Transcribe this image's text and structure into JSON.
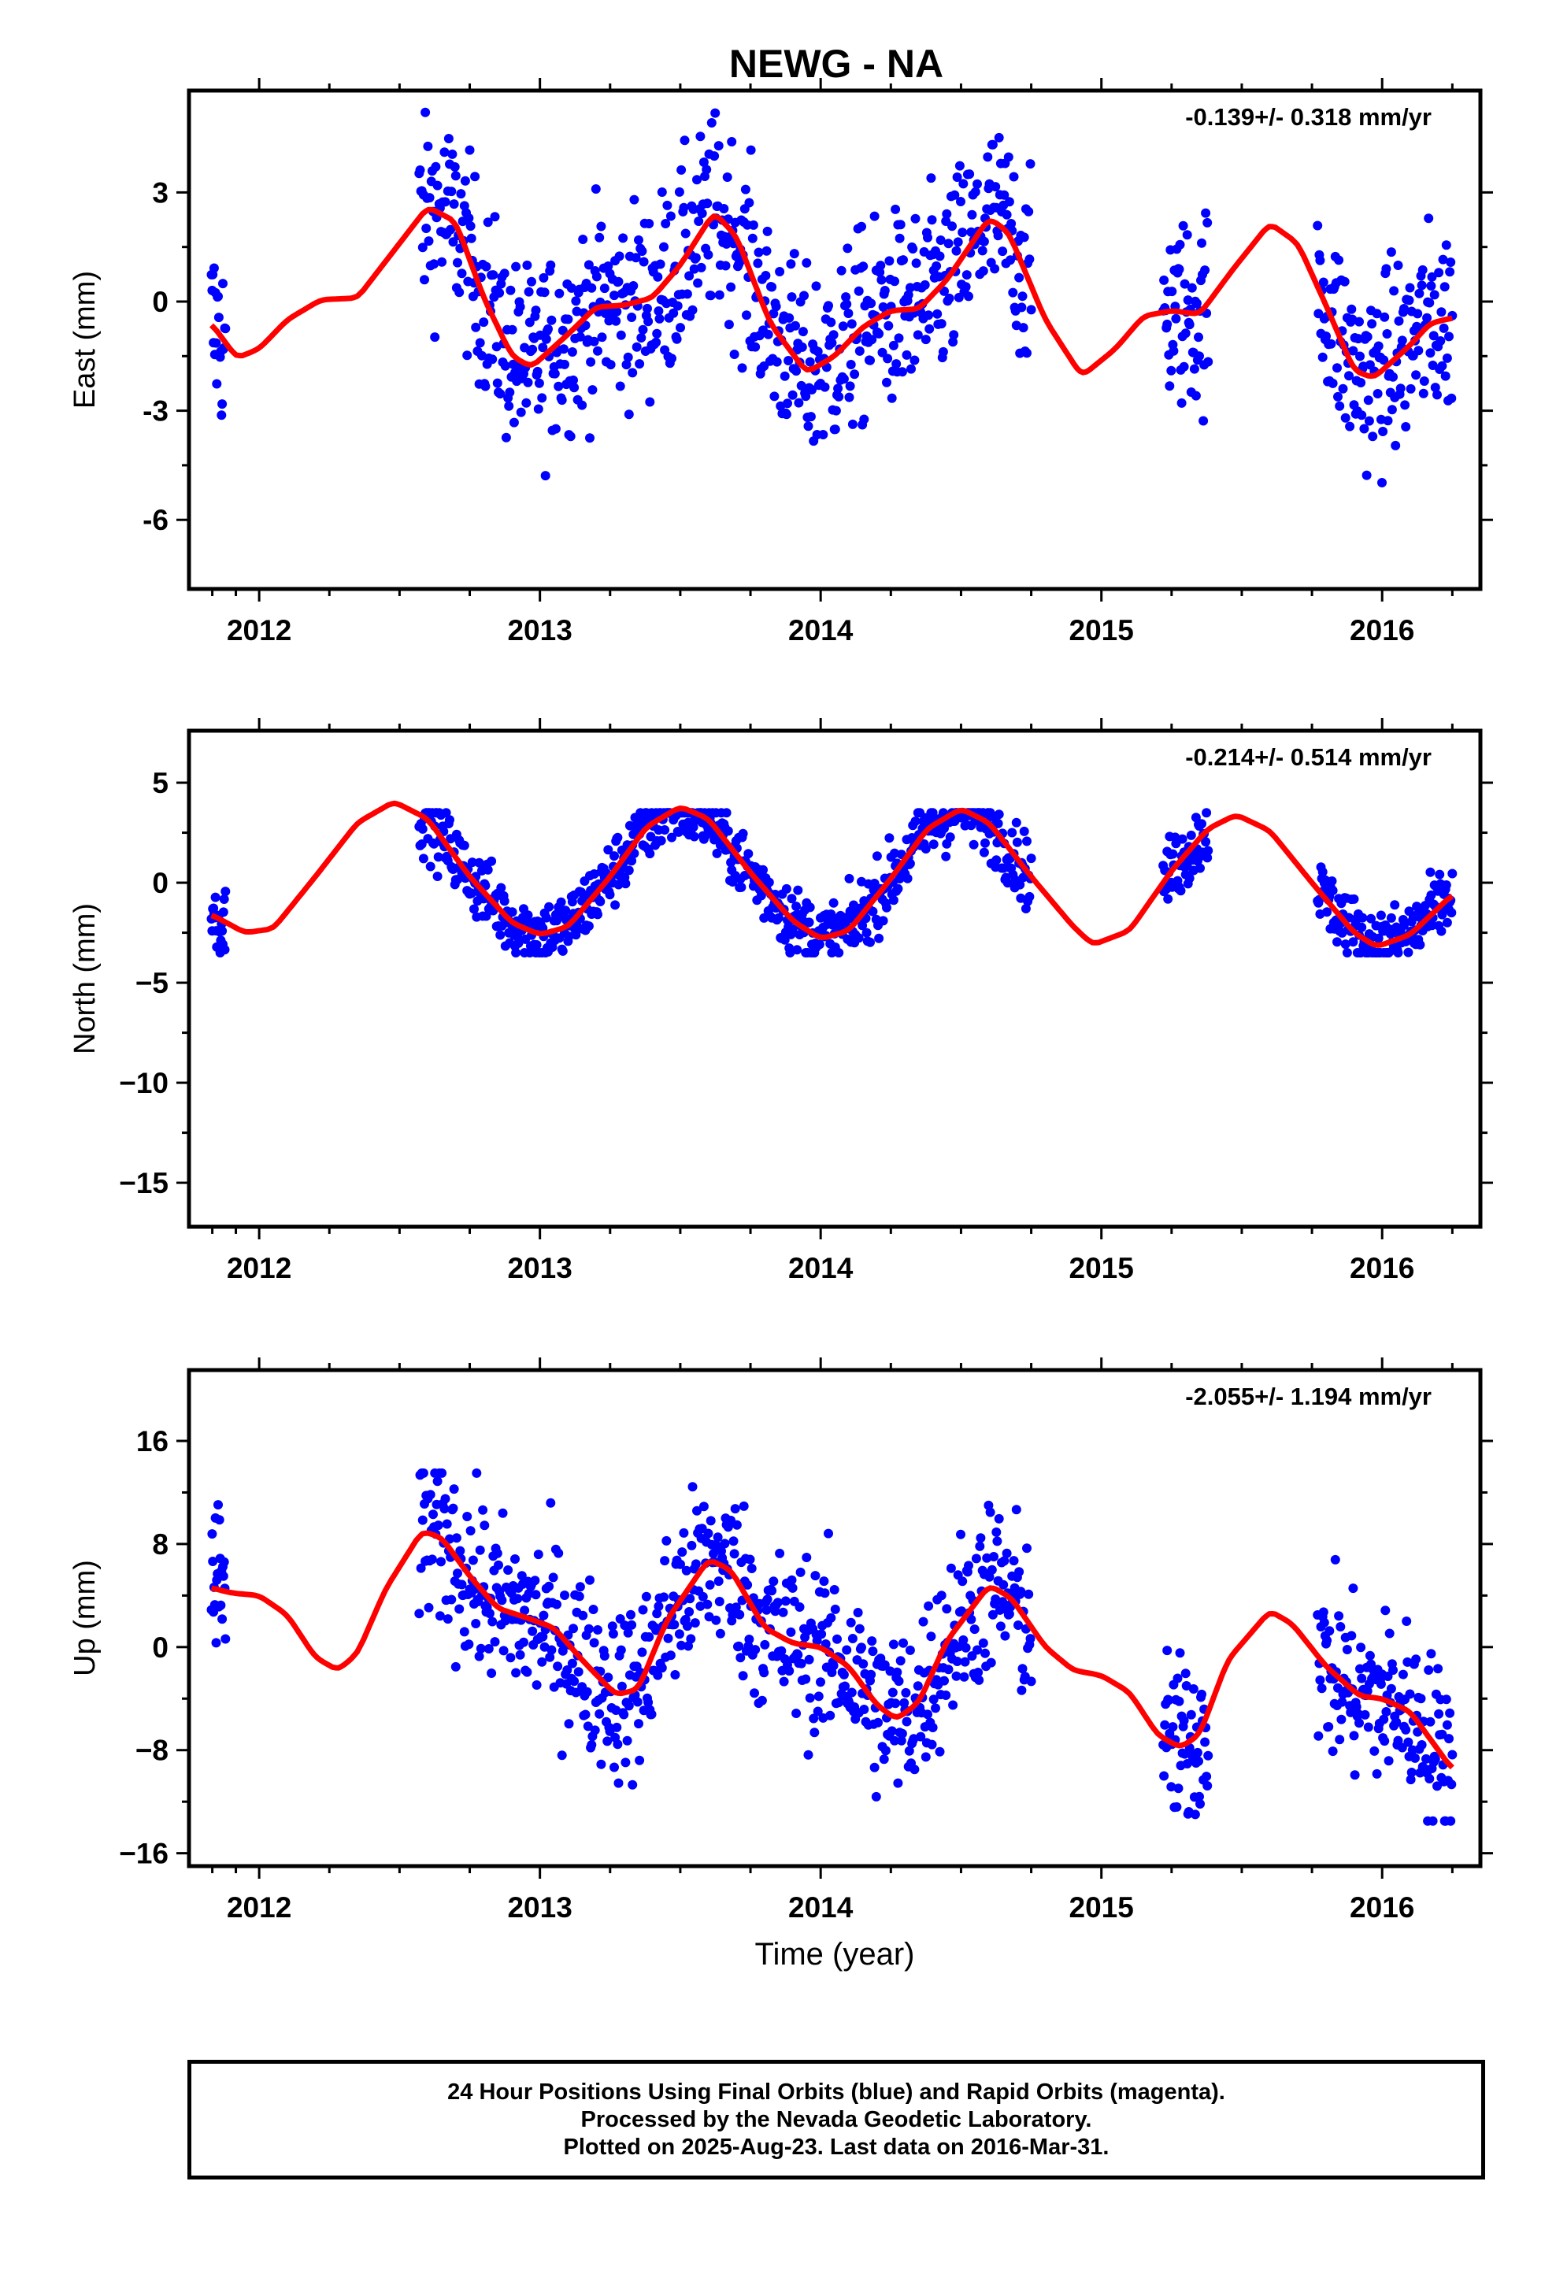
{
  "title": "NEWG - NA",
  "colors": {
    "final_orbits": "#0000ff",
    "model_fit": "#ff0000"
  },
  "footer": {
    "line1": "24 Hour Positions Using Final Orbits (blue) and Rapid Orbits (magenta).",
    "line2": "Processed by the Nevada Geodetic Laboratory.",
    "line3": "Plotted on 2025-Aug-23. Last data on 2016-Mar-31."
  },
  "chart_data": [
    {
      "type": "scatter",
      "component": "east",
      "ylabel": "East (mm)",
      "xlabel": "",
      "rate": "-0.139+/- 0.318 mm/yr",
      "xlim": [
        2011.75,
        2016.35
      ],
      "ylim": [
        -7.9,
        5.8
      ],
      "xticks": [
        2012,
        2013,
        2014,
        2015,
        2016
      ],
      "yticks": [
        3,
        0,
        -3,
        -6
      ],
      "ytick_labels": [
        "3",
        "0",
        "-3",
        "-6"
      ],
      "data_ranges": [
        [
          2011.83,
          2011.88
        ],
        [
          2012.57,
          2014.75
        ],
        [
          2015.22,
          2015.38
        ],
        [
          2015.77,
          2016.25
        ]
      ],
      "fit": [
        [
          2011.83,
          -0.6
        ],
        [
          2011.92,
          -1.55
        ],
        [
          2012.0,
          -1.3
        ],
        [
          2012.1,
          -0.5
        ],
        [
          2012.22,
          0.05
        ],
        [
          2012.35,
          0.1
        ],
        [
          2012.47,
          1.3
        ],
        [
          2012.6,
          2.6
        ],
        [
          2012.7,
          2.2
        ],
        [
          2012.8,
          0.1
        ],
        [
          2012.9,
          -1.5
        ],
        [
          2012.97,
          -1.8
        ],
        [
          2013.1,
          -0.9
        ],
        [
          2013.2,
          -0.15
        ],
        [
          2013.3,
          -0.1
        ],
        [
          2013.4,
          0.1
        ],
        [
          2013.5,
          1.0
        ],
        [
          2013.62,
          2.45
        ],
        [
          2013.7,
          1.8
        ],
        [
          2013.82,
          -0.6
        ],
        [
          2013.95,
          -1.95
        ],
        [
          2014.05,
          -1.5
        ],
        [
          2014.15,
          -0.7
        ],
        [
          2014.25,
          -0.25
        ],
        [
          2014.35,
          -0.2
        ],
        [
          2014.45,
          0.6
        ],
        [
          2014.6,
          2.3
        ],
        [
          2014.67,
          1.9
        ],
        [
          2014.8,
          -0.5
        ],
        [
          2014.93,
          -2.05
        ],
        [
          2015.05,
          -1.3
        ],
        [
          2015.15,
          -0.4
        ],
        [
          2015.25,
          -0.25
        ],
        [
          2015.35,
          -0.35
        ],
        [
          2015.47,
          0.9
        ],
        [
          2015.6,
          2.15
        ],
        [
          2015.7,
          1.6
        ],
        [
          2015.8,
          -0.1
        ],
        [
          2015.9,
          -1.9
        ],
        [
          2015.97,
          -2.1
        ],
        [
          2016.1,
          -1.2
        ],
        [
          2016.17,
          -0.6
        ],
        [
          2016.25,
          -0.45
        ]
      ],
      "rand": [
        -5.3,
        5.2
      ]
    },
    {
      "type": "scatter",
      "component": "north",
      "ylabel": "North (mm)",
      "xlabel": "",
      "rate": "-0.214+/- 0.514 mm/yr",
      "xlim": [
        2011.75,
        2016.35
      ],
      "ylim": [
        -17.2,
        7.6
      ],
      "xticks": [
        2012,
        2013,
        2014,
        2015,
        2016
      ],
      "yticks": [
        5,
        0,
        -5,
        -10,
        -15
      ],
      "ytick_labels": [
        "5",
        "0",
        "−5",
        "−10",
        "−15"
      ],
      "data_ranges": [
        [
          2011.83,
          2011.88
        ],
        [
          2012.57,
          2014.75
        ],
        [
          2015.22,
          2015.38
        ],
        [
          2015.77,
          2016.25
        ]
      ],
      "fit": [
        [
          2011.83,
          -1.6
        ],
        [
          2011.95,
          -2.5
        ],
        [
          2012.05,
          -2.3
        ],
        [
          2012.2,
          0.3
        ],
        [
          2012.35,
          3.0
        ],
        [
          2012.48,
          4.05
        ],
        [
          2012.6,
          3.2
        ],
        [
          2012.75,
          0.3
        ],
        [
          2012.9,
          -2.0
        ],
        [
          2013.0,
          -2.6
        ],
        [
          2013.1,
          -2.2
        ],
        [
          2013.25,
          0.3
        ],
        [
          2013.38,
          2.8
        ],
        [
          2013.5,
          3.8
        ],
        [
          2013.6,
          3.2
        ],
        [
          2013.75,
          0.5
        ],
        [
          2013.9,
          -1.9
        ],
        [
          2014.0,
          -2.8
        ],
        [
          2014.1,
          -2.4
        ],
        [
          2014.25,
          0.2
        ],
        [
          2014.38,
          2.7
        ],
        [
          2014.5,
          3.7
        ],
        [
          2014.6,
          3.0
        ],
        [
          2014.75,
          0.3
        ],
        [
          2014.9,
          -2.2
        ],
        [
          2014.97,
          -3.1
        ],
        [
          2015.1,
          -2.4
        ],
        [
          2015.25,
          0.6
        ],
        [
          2015.38,
          2.7
        ],
        [
          2015.48,
          3.4
        ],
        [
          2015.6,
          2.6
        ],
        [
          2015.75,
          0.0
        ],
        [
          2015.9,
          -2.5
        ],
        [
          2015.98,
          -3.2
        ],
        [
          2016.1,
          -2.6
        ],
        [
          2016.25,
          -0.6
        ]
      ],
      "rand": [
        -3.5,
        3.5
      ]
    },
    {
      "type": "scatter",
      "component": "up",
      "ylabel": "Up (mm)",
      "xlabel": "Time (year)",
      "rate": "-2.055+/- 1.194 mm/yr",
      "xlim": [
        2011.75,
        2016.35
      ],
      "ylim": [
        -17.0,
        21.5
      ],
      "xticks": [
        2012,
        2013,
        2014,
        2015,
        2016
      ],
      "yticks": [
        16,
        8,
        0,
        -8,
        -16
      ],
      "ytick_labels": [
        "16",
        "8",
        "0",
        "−8",
        "−16"
      ],
      "data_ranges": [
        [
          2011.83,
          2011.88
        ],
        [
          2012.57,
          2014.75
        ],
        [
          2015.22,
          2015.38
        ],
        [
          2015.77,
          2016.25
        ]
      ],
      "fit": [
        [
          2011.83,
          4.6
        ],
        [
          2011.9,
          4.2
        ],
        [
          2012.0,
          4.0
        ],
        [
          2012.1,
          2.5
        ],
        [
          2012.2,
          -0.8
        ],
        [
          2012.28,
          -1.8
        ],
        [
          2012.35,
          -0.5
        ],
        [
          2012.45,
          4.5
        ],
        [
          2012.58,
          9.0
        ],
        [
          2012.65,
          8.5
        ],
        [
          2012.75,
          5.5
        ],
        [
          2012.85,
          3.0
        ],
        [
          2012.95,
          2.3
        ],
        [
          2013.05,
          1.5
        ],
        [
          2013.15,
          -1.0
        ],
        [
          2013.27,
          -3.7
        ],
        [
          2013.35,
          -3.3
        ],
        [
          2013.45,
          2.0
        ],
        [
          2013.6,
          6.8
        ],
        [
          2013.68,
          6.0
        ],
        [
          2013.8,
          1.5
        ],
        [
          2013.9,
          0.3
        ],
        [
          2014.0,
          0.0
        ],
        [
          2014.1,
          -1.5
        ],
        [
          2014.2,
          -4.5
        ],
        [
          2014.27,
          -5.6
        ],
        [
          2014.35,
          -4.3
        ],
        [
          2014.45,
          0.5
        ],
        [
          2014.6,
          4.8
        ],
        [
          2014.68,
          3.8
        ],
        [
          2014.8,
          0.0
        ],
        [
          2014.9,
          -1.8
        ],
        [
          2015.0,
          -2.2
        ],
        [
          2015.1,
          -3.5
        ],
        [
          2015.2,
          -6.8
        ],
        [
          2015.28,
          -7.8
        ],
        [
          2015.35,
          -6.8
        ],
        [
          2015.45,
          -1.0
        ],
        [
          2015.6,
          2.8
        ],
        [
          2015.68,
          1.8
        ],
        [
          2015.8,
          -1.5
        ],
        [
          2015.92,
          -3.8
        ],
        [
          2016.0,
          -4.0
        ],
        [
          2016.1,
          -5.0
        ],
        [
          2016.2,
          -8.0
        ],
        [
          2016.25,
          -9.5
        ]
      ],
      "rand": [
        -13.5,
        13.5
      ]
    }
  ]
}
